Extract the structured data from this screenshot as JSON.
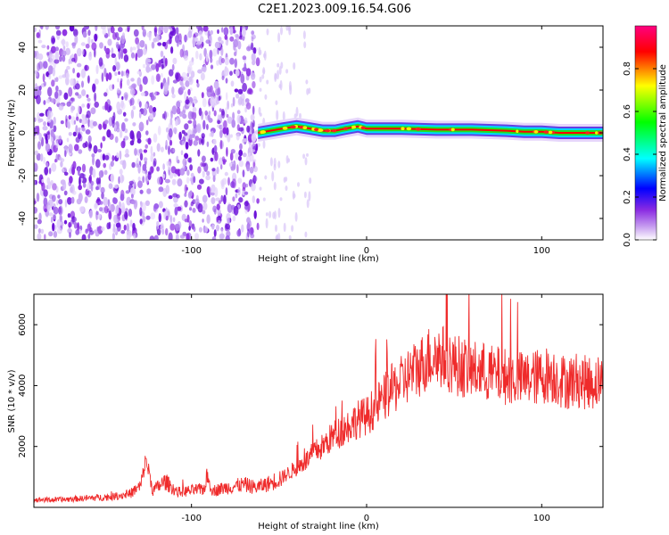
{
  "title": "C2E1.2023.009.16.54.G06",
  "chart_data": [
    {
      "type": "heatmap",
      "xlabel": "Height of straight line (km)",
      "ylabel": "Frequency (Hz)",
      "xlim": [
        -190,
        135
      ],
      "ylim": [
        -50,
        50
      ],
      "xticks": [
        -100,
        0,
        100
      ],
      "xtick_labels": [
        "-100",
        "0",
        "100"
      ],
      "yticks": [
        -40,
        -20,
        0,
        20,
        40
      ],
      "ytick_labels": [
        "-40",
        "-20",
        "0",
        "20",
        "40"
      ],
      "colorbar": {
        "label": "Normalized spectral amplitude",
        "range": [
          0,
          1
        ],
        "ticks": [
          0.0,
          0.2,
          0.4,
          0.6,
          0.8
        ],
        "tick_labels": [
          "0.0",
          "0.2",
          "0.4",
          "0.6",
          "0.8"
        ],
        "colors": [
          "#ffffff",
          "#8a2be2",
          "#0000ff",
          "#00ffff",
          "#00ff00",
          "#ffff00",
          "#ff0000",
          "#ff0080"
        ]
      },
      "noise_region_x": [
        -190,
        -62
      ],
      "signal_trace": {
        "x": [
          -62,
          -55,
          -48,
          -40,
          -32,
          -25,
          -18,
          -12,
          -5,
          0,
          20,
          40,
          60,
          80,
          90,
          95,
          100,
          110,
          120,
          135
        ],
        "y": [
          0,
          1,
          2,
          3,
          2,
          1,
          1,
          2,
          3,
          2,
          2,
          1.5,
          1.5,
          1,
          0.5,
          0.5,
          0.5,
          0,
          0,
          0
        ],
        "color": "#ff0000"
      },
      "grid": false
    },
    {
      "type": "line",
      "xlabel": "Height of straight line (km)",
      "ylabel": "SNR (10 * v/v)",
      "xlim": [
        -190,
        135
      ],
      "ylim": [
        0,
        7000
      ],
      "xticks": [
        -100,
        0,
        100
      ],
      "xtick_labels": [
        "-100",
        "0",
        "100"
      ],
      "yticks": [
        2000,
        4000,
        6000
      ],
      "ytick_labels": [
        "2000",
        "4000",
        "6000"
      ],
      "series": [
        {
          "color": "#ef2b2b",
          "x": [
            -190,
            -175,
            -160,
            -145,
            -135,
            -129,
            -126,
            -122,
            -115,
            -108,
            -100,
            -93,
            -91,
            -88,
            -80,
            -70,
            -63,
            -55,
            -48,
            -40,
            -35,
            -30,
            -25,
            -20,
            -15,
            -10,
            -5,
            0,
            5,
            10,
            15,
            20,
            25,
            30,
            35,
            40,
            45,
            50,
            55,
            60,
            65,
            70,
            80,
            90,
            100,
            105,
            110,
            115,
            120,
            125,
            130,
            135
          ],
          "y": [
            250,
            250,
            300,
            350,
            450,
            700,
            1600,
            550,
            850,
            500,
            550,
            600,
            1000,
            550,
            650,
            750,
            650,
            800,
            1000,
            1300,
            1500,
            1800,
            2000,
            2300,
            2500,
            2700,
            2900,
            3000,
            3300,
            3600,
            3900,
            4100,
            4400,
            4600,
            4900,
            5000,
            4900,
            4700,
            4600,
            4500,
            4500,
            4400,
            4300,
            4200,
            4300,
            4400,
            4200,
            4100,
            4200,
            4100,
            4100,
            4200
          ]
        }
      ],
      "grid": false
    }
  ]
}
